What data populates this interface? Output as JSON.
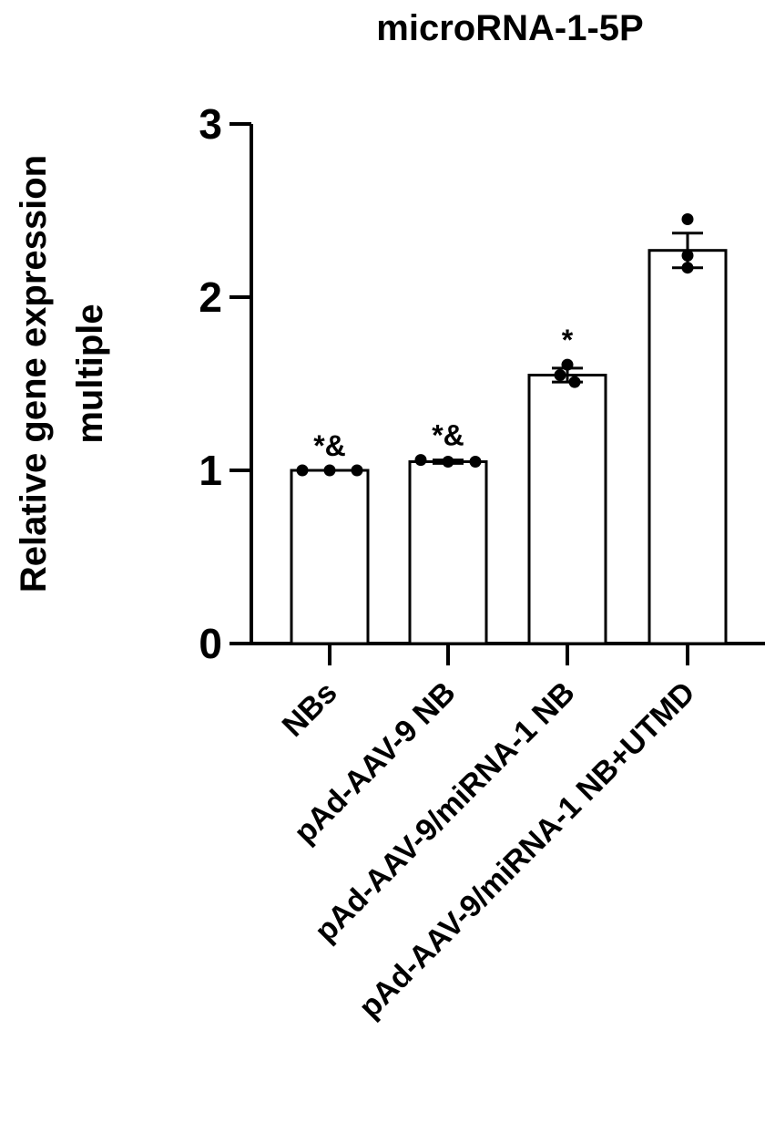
{
  "chart_data": {
    "type": "bar",
    "title": "microRNA-1-5P",
    "ylabel_lines": [
      "Relative gene expression",
      "multiple"
    ],
    "xlabel": "",
    "ylim": [
      0,
      3
    ],
    "yticks": [
      "0",
      "1",
      "2",
      "3"
    ],
    "grid": false,
    "categories": [
      "NBs",
      "pAd-AAV-9 NB",
      "pAd-AAV-9/miRNA-1 NB",
      "pAd-AAV-9/miRNA-1 NB+UTMD"
    ],
    "values": [
      1.0,
      1.05,
      1.55,
      2.27
    ],
    "errors": [
      0.0,
      0.01,
      0.04,
      0.1
    ],
    "points": [
      [
        1.0,
        1.0,
        1.0
      ],
      [
        1.06,
        1.05,
        1.05
      ],
      [
        1.61,
        1.51,
        1.55
      ],
      [
        2.45,
        2.17,
        2.24
      ]
    ],
    "annotations": [
      "*&",
      "*&",
      "*",
      ""
    ],
    "colors": {
      "bar_fill": "#ffffff",
      "bar_stroke": "#000000",
      "point": "#000000"
    }
  }
}
